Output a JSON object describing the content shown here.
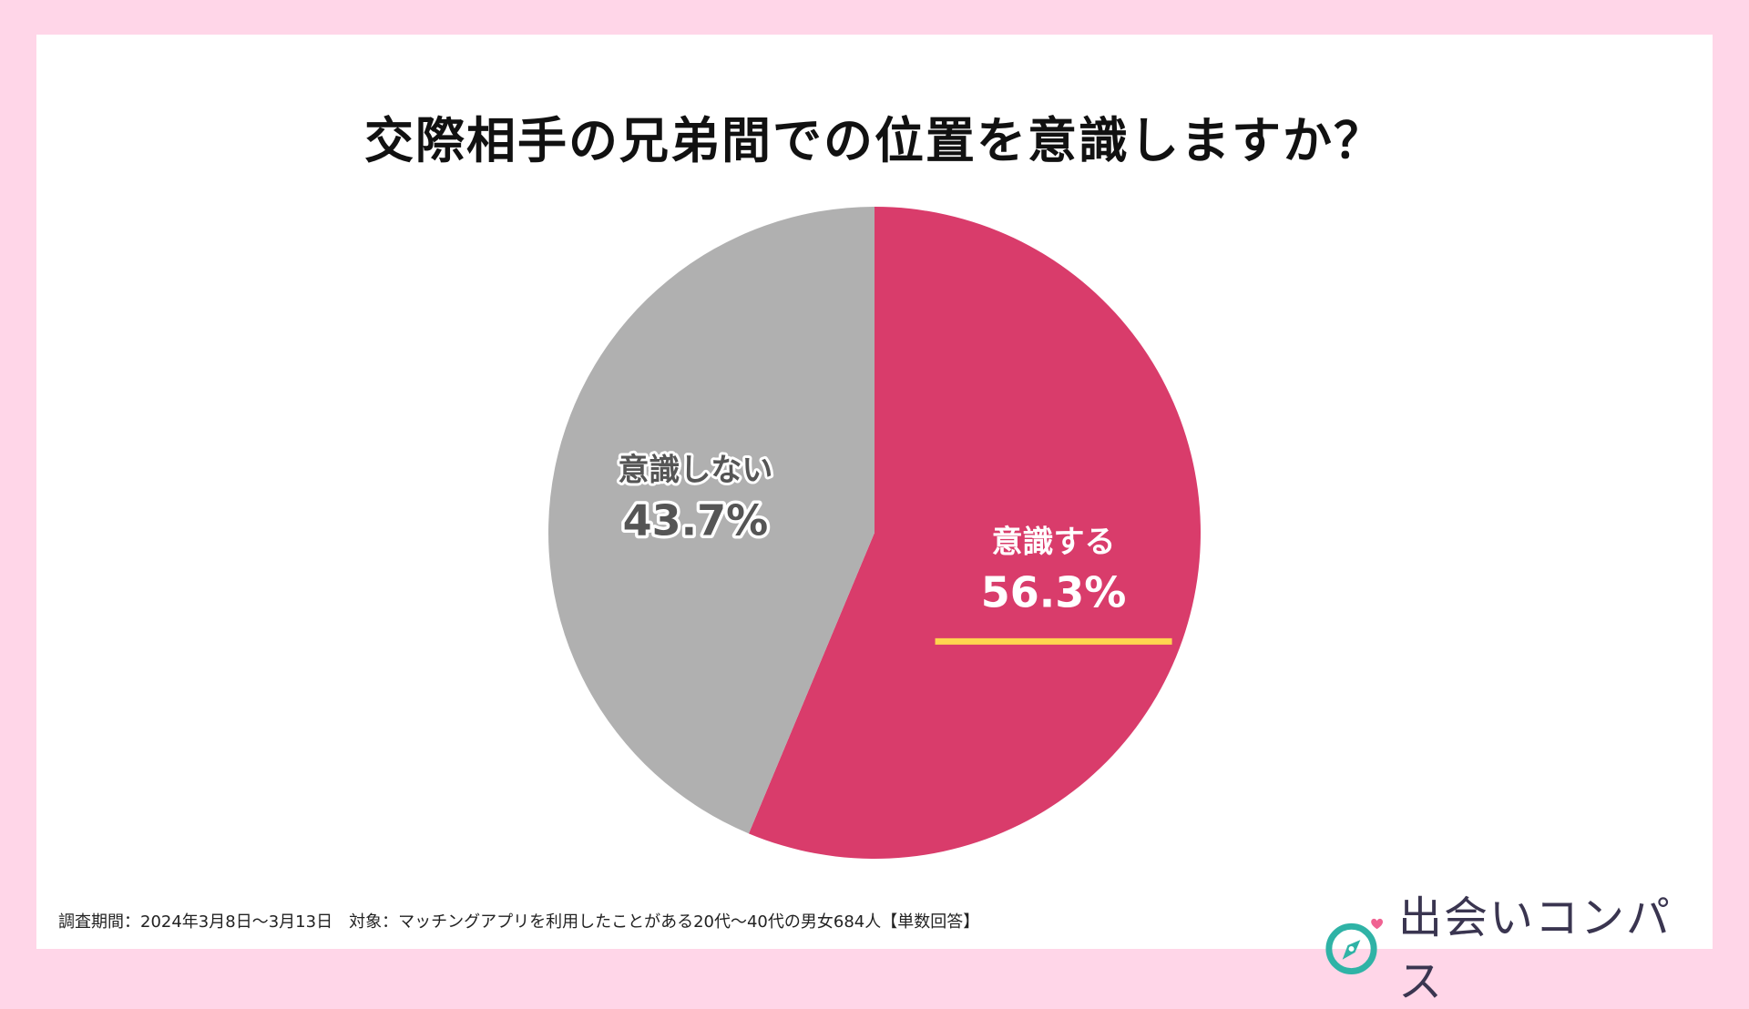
{
  "chart_data": {
    "type": "pie",
    "title": "交際相手の兄弟間での位置を意識しますか？",
    "slices": [
      {
        "label": "意識する",
        "value": 56.3,
        "value_label": "56.3%",
        "color": "#d93c6b",
        "text_color": "#ffffff",
        "outline_color": "#d93c6b",
        "accent": "#ffd54f"
      },
      {
        "label": "意識しない",
        "value": 43.7,
        "value_label": "43.7%",
        "color": "#b0b0b0",
        "text_color": "#555555",
        "outline_color": "#ffffff"
      }
    ],
    "start": "12 o'clock",
    "direction": "clockwise"
  },
  "footnote": "調査期間：2024年3月8日〜3月13日　対象：マッチングアプリを利用したことがある20代〜40代の男女684人【単数回答】",
  "brand": {
    "name": "出会いコンパス",
    "icon": "compass-heart-icon",
    "teal": "#2fb3a6",
    "heart": "#f06292"
  },
  "colors": {
    "background": "#ffd6e8",
    "card": "#ffffff"
  }
}
